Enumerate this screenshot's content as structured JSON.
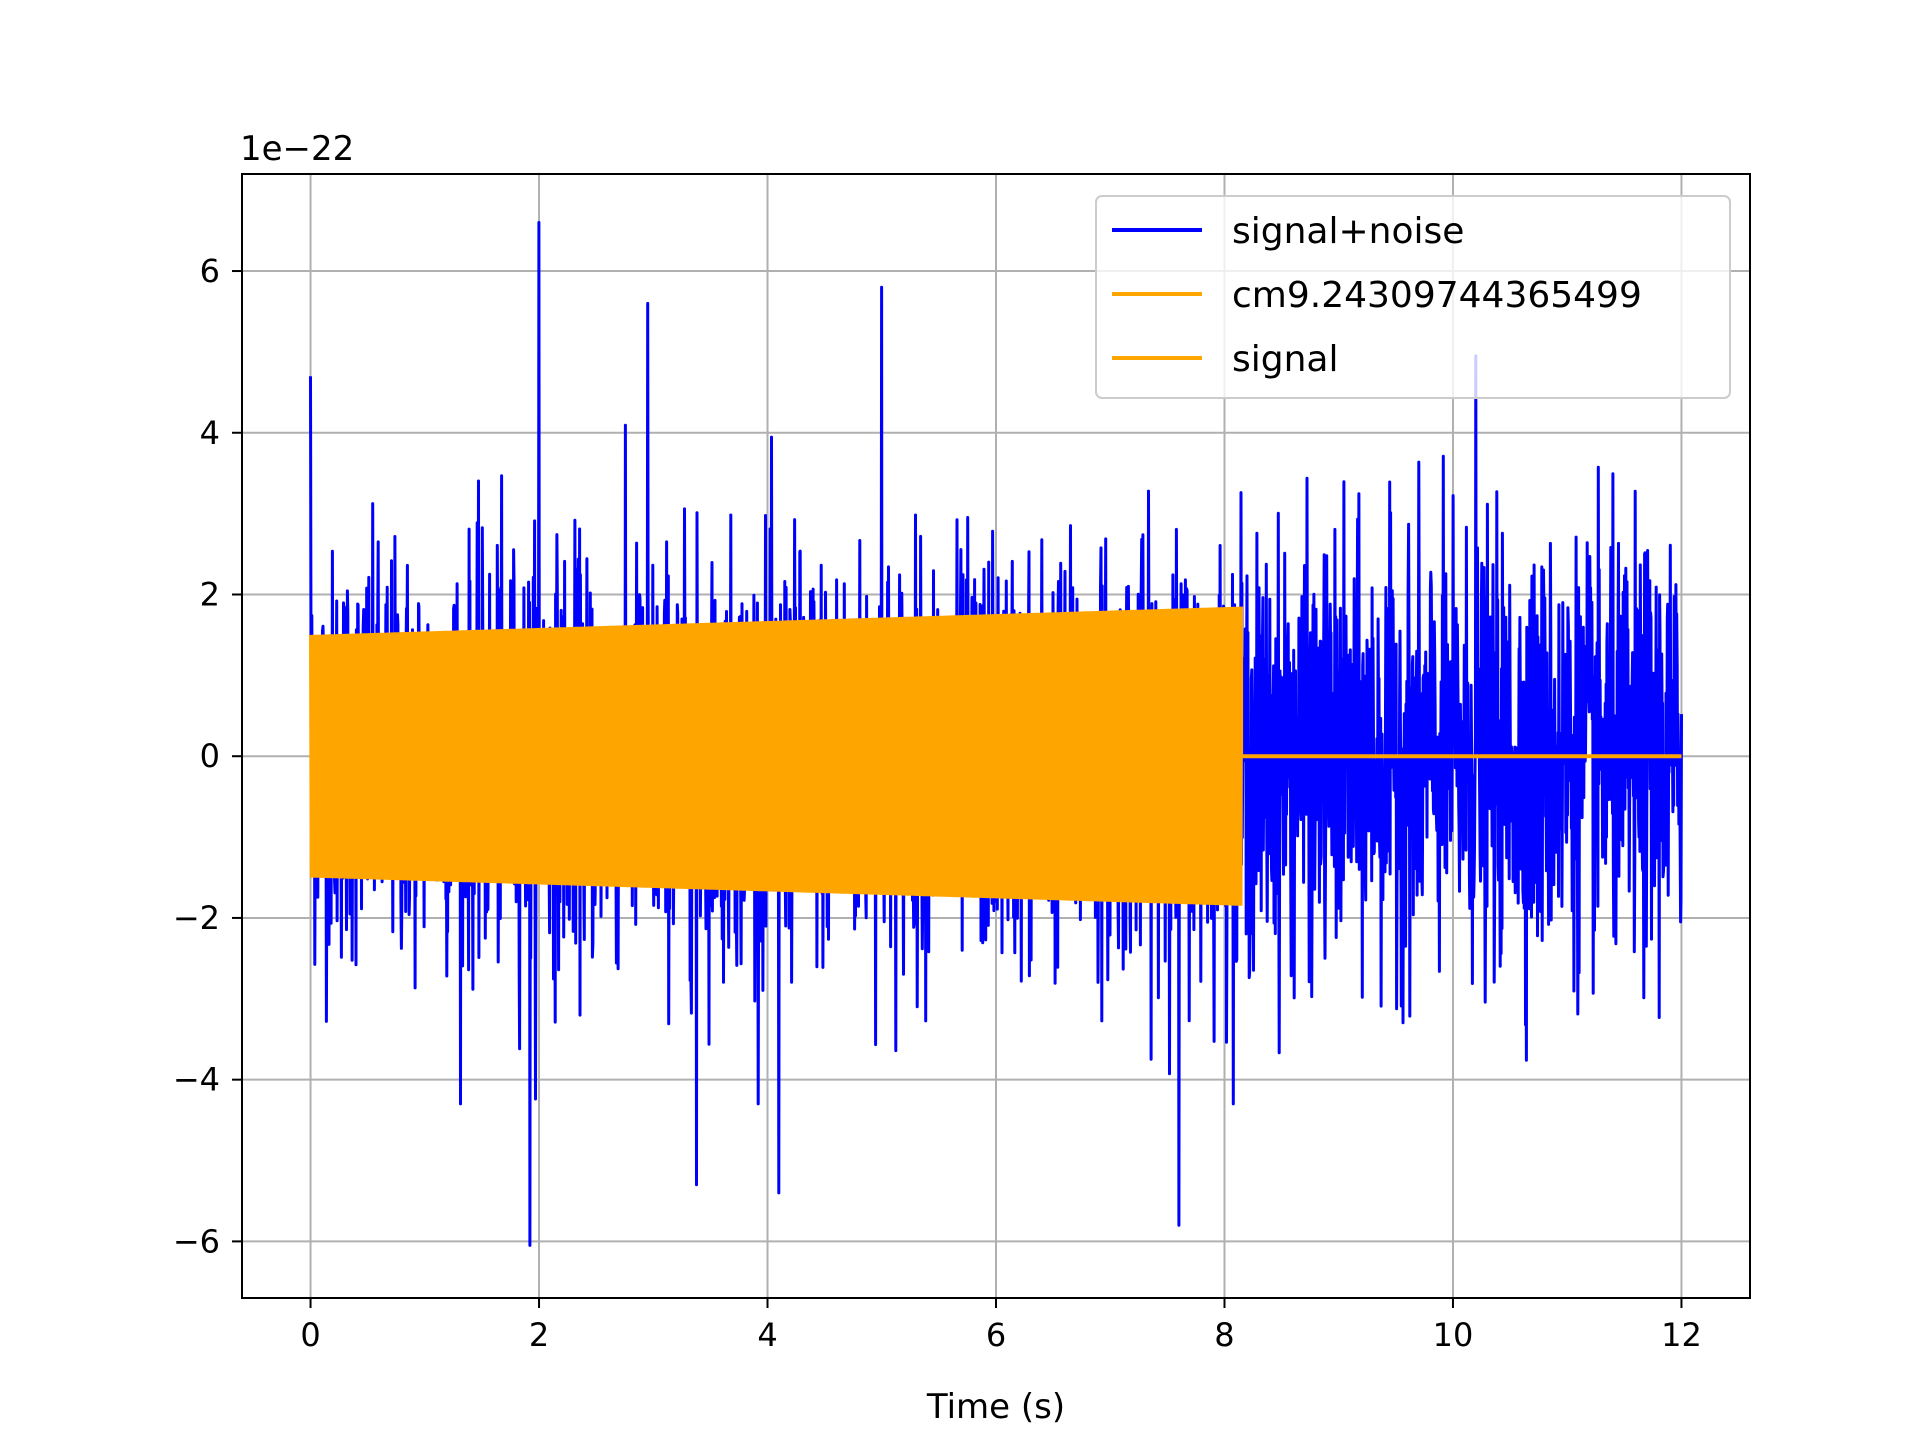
{
  "chart_data": {
    "type": "line",
    "title": "",
    "xlabel": "Time (s)",
    "ylabel": "",
    "y_offset_label": "1e−22",
    "xlim": [
      -0.6,
      12.6
    ],
    "ylim": [
      -6.7,
      7.2
    ],
    "y_scale_factor": 1e-22,
    "xticks": [
      0,
      2,
      4,
      6,
      8,
      10,
      12
    ],
    "xtick_labels": [
      "0",
      "2",
      "4",
      "6",
      "8",
      "10",
      "12"
    ],
    "yticks": [
      -6,
      -4,
      -2,
      0,
      2,
      4,
      6
    ],
    "ytick_labels": [
      "−6",
      "−4",
      "−2",
      "0",
      "2",
      "4",
      "6"
    ],
    "grid": true,
    "legend_position": "upper right",
    "series": [
      {
        "name": "signal+noise",
        "color": "#0000ff",
        "description_values": "noisy strain time series, roughly ±2 with spikes",
        "x_range": [
          0,
          12
        ],
        "notable_peaks": [
          {
            "x": 0.0,
            "y": 4.7
          },
          {
            "x": 2.0,
            "y": 6.6
          },
          {
            "x": 2.95,
            "y": 5.6
          },
          {
            "x": 5.0,
            "y": 5.8
          },
          {
            "x": 10.2,
            "y": 4.95
          },
          {
            "x": 1.92,
            "y": -6.05
          },
          {
            "x": 7.6,
            "y": -5.8
          },
          {
            "x": 3.38,
            "y": -5.3
          },
          {
            "x": 4.1,
            "y": -5.4
          }
        ]
      },
      {
        "name": "cm9.24309744365499",
        "color": "#ffa500",
        "x_range": [
          0,
          8.15
        ],
        "envelope_start": 1.55,
        "envelope_end": 1.9,
        "after_end_value": 0
      },
      {
        "name": "signal",
        "color": "#ffa500",
        "x_range": [
          0,
          12
        ],
        "envelope_start": 1.5,
        "envelope_end": 1.85,
        "chirp_end_x": 8.15,
        "after_end_value": 0
      }
    ]
  }
}
